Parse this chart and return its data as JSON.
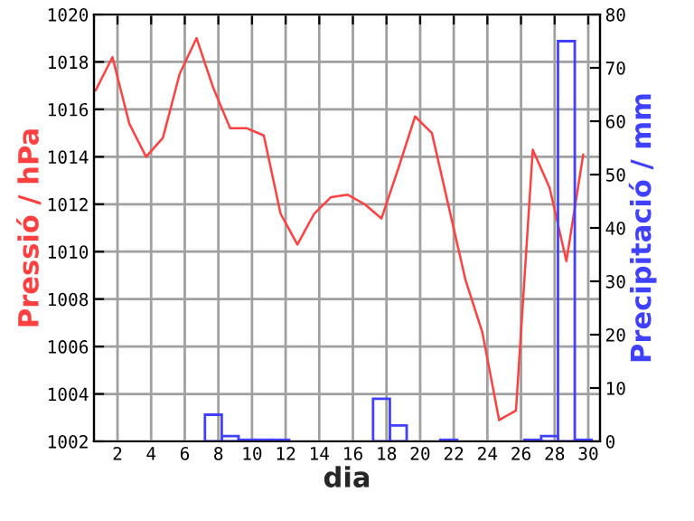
{
  "chart_data": {
    "type": "line",
    "xlabel": "dia",
    "ylabel": "Pressió / hPa",
    "y2label": "Precipitació / mm",
    "xlim": [
      0.6,
      30.7
    ],
    "xticks": [
      2,
      4,
      6,
      8,
      10,
      12,
      14,
      16,
      18,
      20,
      22,
      24,
      26,
      28,
      30
    ],
    "ylim": [
      1002,
      1020
    ],
    "yticks": [
      1002,
      1004,
      1006,
      1008,
      1010,
      1012,
      1014,
      1016,
      1018,
      1020
    ],
    "y2lim": [
      0,
      80
    ],
    "y2ticks": [
      0,
      10,
      20,
      30,
      40,
      50,
      60,
      70,
      80
    ],
    "grid": true,
    "series": [
      {
        "color": "#ff4040",
        "x": [
          0.7,
          1.7,
          2.7,
          3.7,
          4.7,
          5.7,
          6.7,
          7.7,
          8.7,
          9.7,
          10.7,
          11.7,
          12.7,
          13.7,
          14.7,
          15.7,
          16.7,
          17.7,
          18.7,
          19.7,
          20.7,
          21.7,
          22.7,
          23.7,
          24.7,
          25.7,
          26.7,
          27.7,
          28.7,
          29.7
        ],
        "values": [
          1016.8,
          1018.2,
          1015.4,
          1014.0,
          1014.8,
          1017.5,
          1019.0,
          1016.9,
          1015.2,
          1015.2,
          1014.9,
          1011.6,
          1010.3,
          1011.6,
          1012.3,
          1012.4,
          1012.0,
          1011.4,
          1013.5,
          1015.7,
          1015.0,
          1011.9,
          1008.8,
          1006.6,
          1002.9,
          1003.3,
          1014.3,
          1012.7,
          1009.6,
          1014.1
        ]
      },
      {
        "type": "bar",
        "axis": "y2",
        "color": "#4040ff",
        "x": [
          7.7,
          8.7,
          9.7,
          10.7,
          11.7,
          17.7,
          18.7,
          21.7,
          26.7,
          27.7,
          28.7,
          29.7
        ],
        "values": [
          5,
          1,
          0.3,
          0.3,
          0.3,
          8,
          3,
          0.3,
          0.3,
          1,
          75,
          0.3
        ]
      }
    ]
  }
}
